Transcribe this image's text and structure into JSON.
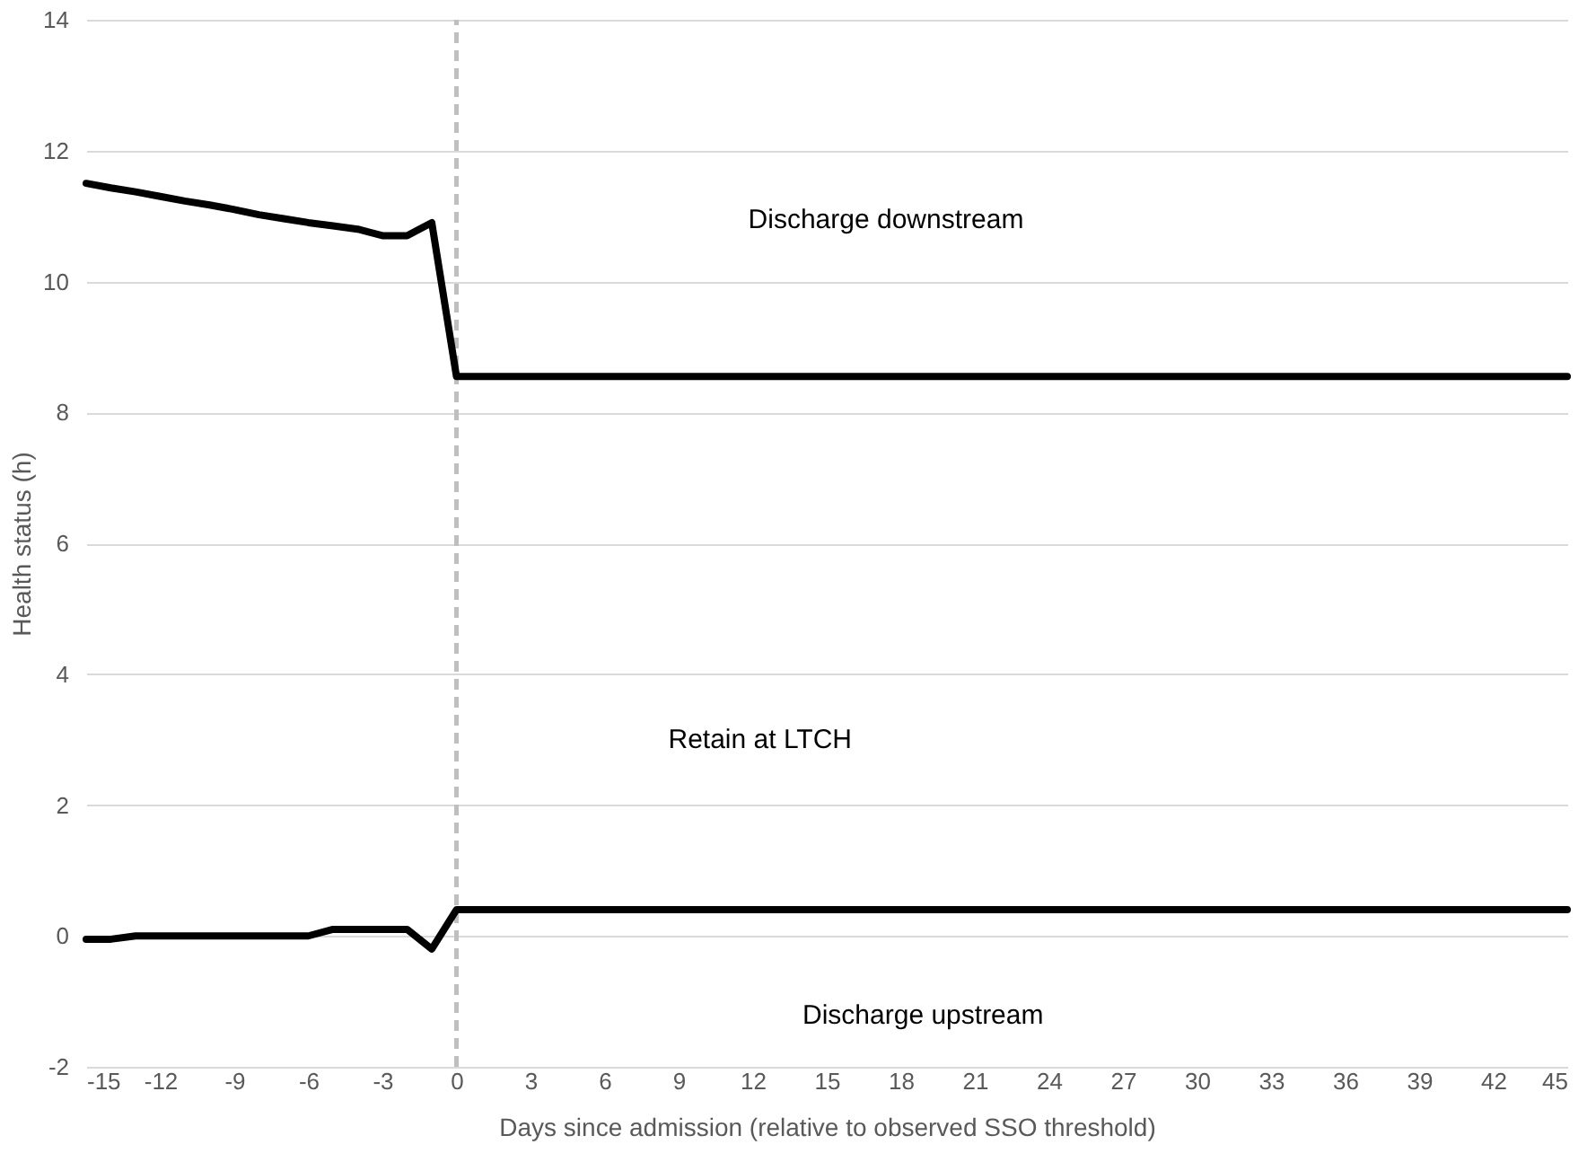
{
  "chart_data": {
    "type": "line",
    "xlabel": "Days since admission (relative to observed SSO threshold)",
    "ylabel": "Health status (h)",
    "series": [
      {
        "color": "#000000",
        "x": [
          -15,
          -14,
          -13,
          -12,
          -11,
          -10,
          -9,
          -8,
          -7,
          -6,
          -5,
          -4,
          -3,
          -2,
          -1,
          0,
          45
        ],
        "values": [
          11.5,
          11.43,
          11.37,
          11.3,
          11.23,
          11.17,
          11.1,
          11.02,
          10.96,
          10.9,
          10.85,
          10.8,
          10.7,
          10.7,
          10.9,
          8.55,
          8.55
        ]
      },
      {
        "color": "#000000",
        "x": [
          -15,
          -14,
          -13,
          -12,
          -11,
          -10,
          -9,
          -8,
          -7,
          -6,
          -5,
          -4,
          -3,
          -2,
          -1,
          0,
          45
        ],
        "values": [
          -0.05,
          -0.05,
          0,
          0,
          0,
          0,
          0,
          0,
          0,
          0,
          0.1,
          0.1,
          0.1,
          0.1,
          -0.2,
          0.4,
          0.4
        ]
      }
    ],
    "xlim": [
      -15,
      45
    ],
    "xticks": [
      -15,
      -12,
      -9,
      -6,
      -3,
      0,
      3,
      6,
      9,
      12,
      15,
      18,
      21,
      24,
      27,
      30,
      33,
      36,
      39,
      42,
      45
    ],
    "ylim": [
      -2,
      14
    ],
    "yticks": [
      -2,
      0,
      2,
      4,
      6,
      8,
      10,
      12,
      14
    ],
    "grid": "y",
    "marker": "none",
    "line_style": "solid",
    "ref_lines": [
      {
        "axis": "x",
        "value": 0,
        "color": "#bfbfbf",
        "line_style": "dashed"
      }
    ],
    "annotations": [
      "Discharge downstream",
      "Retain at LTCH",
      "Discharge upstream"
    ]
  }
}
